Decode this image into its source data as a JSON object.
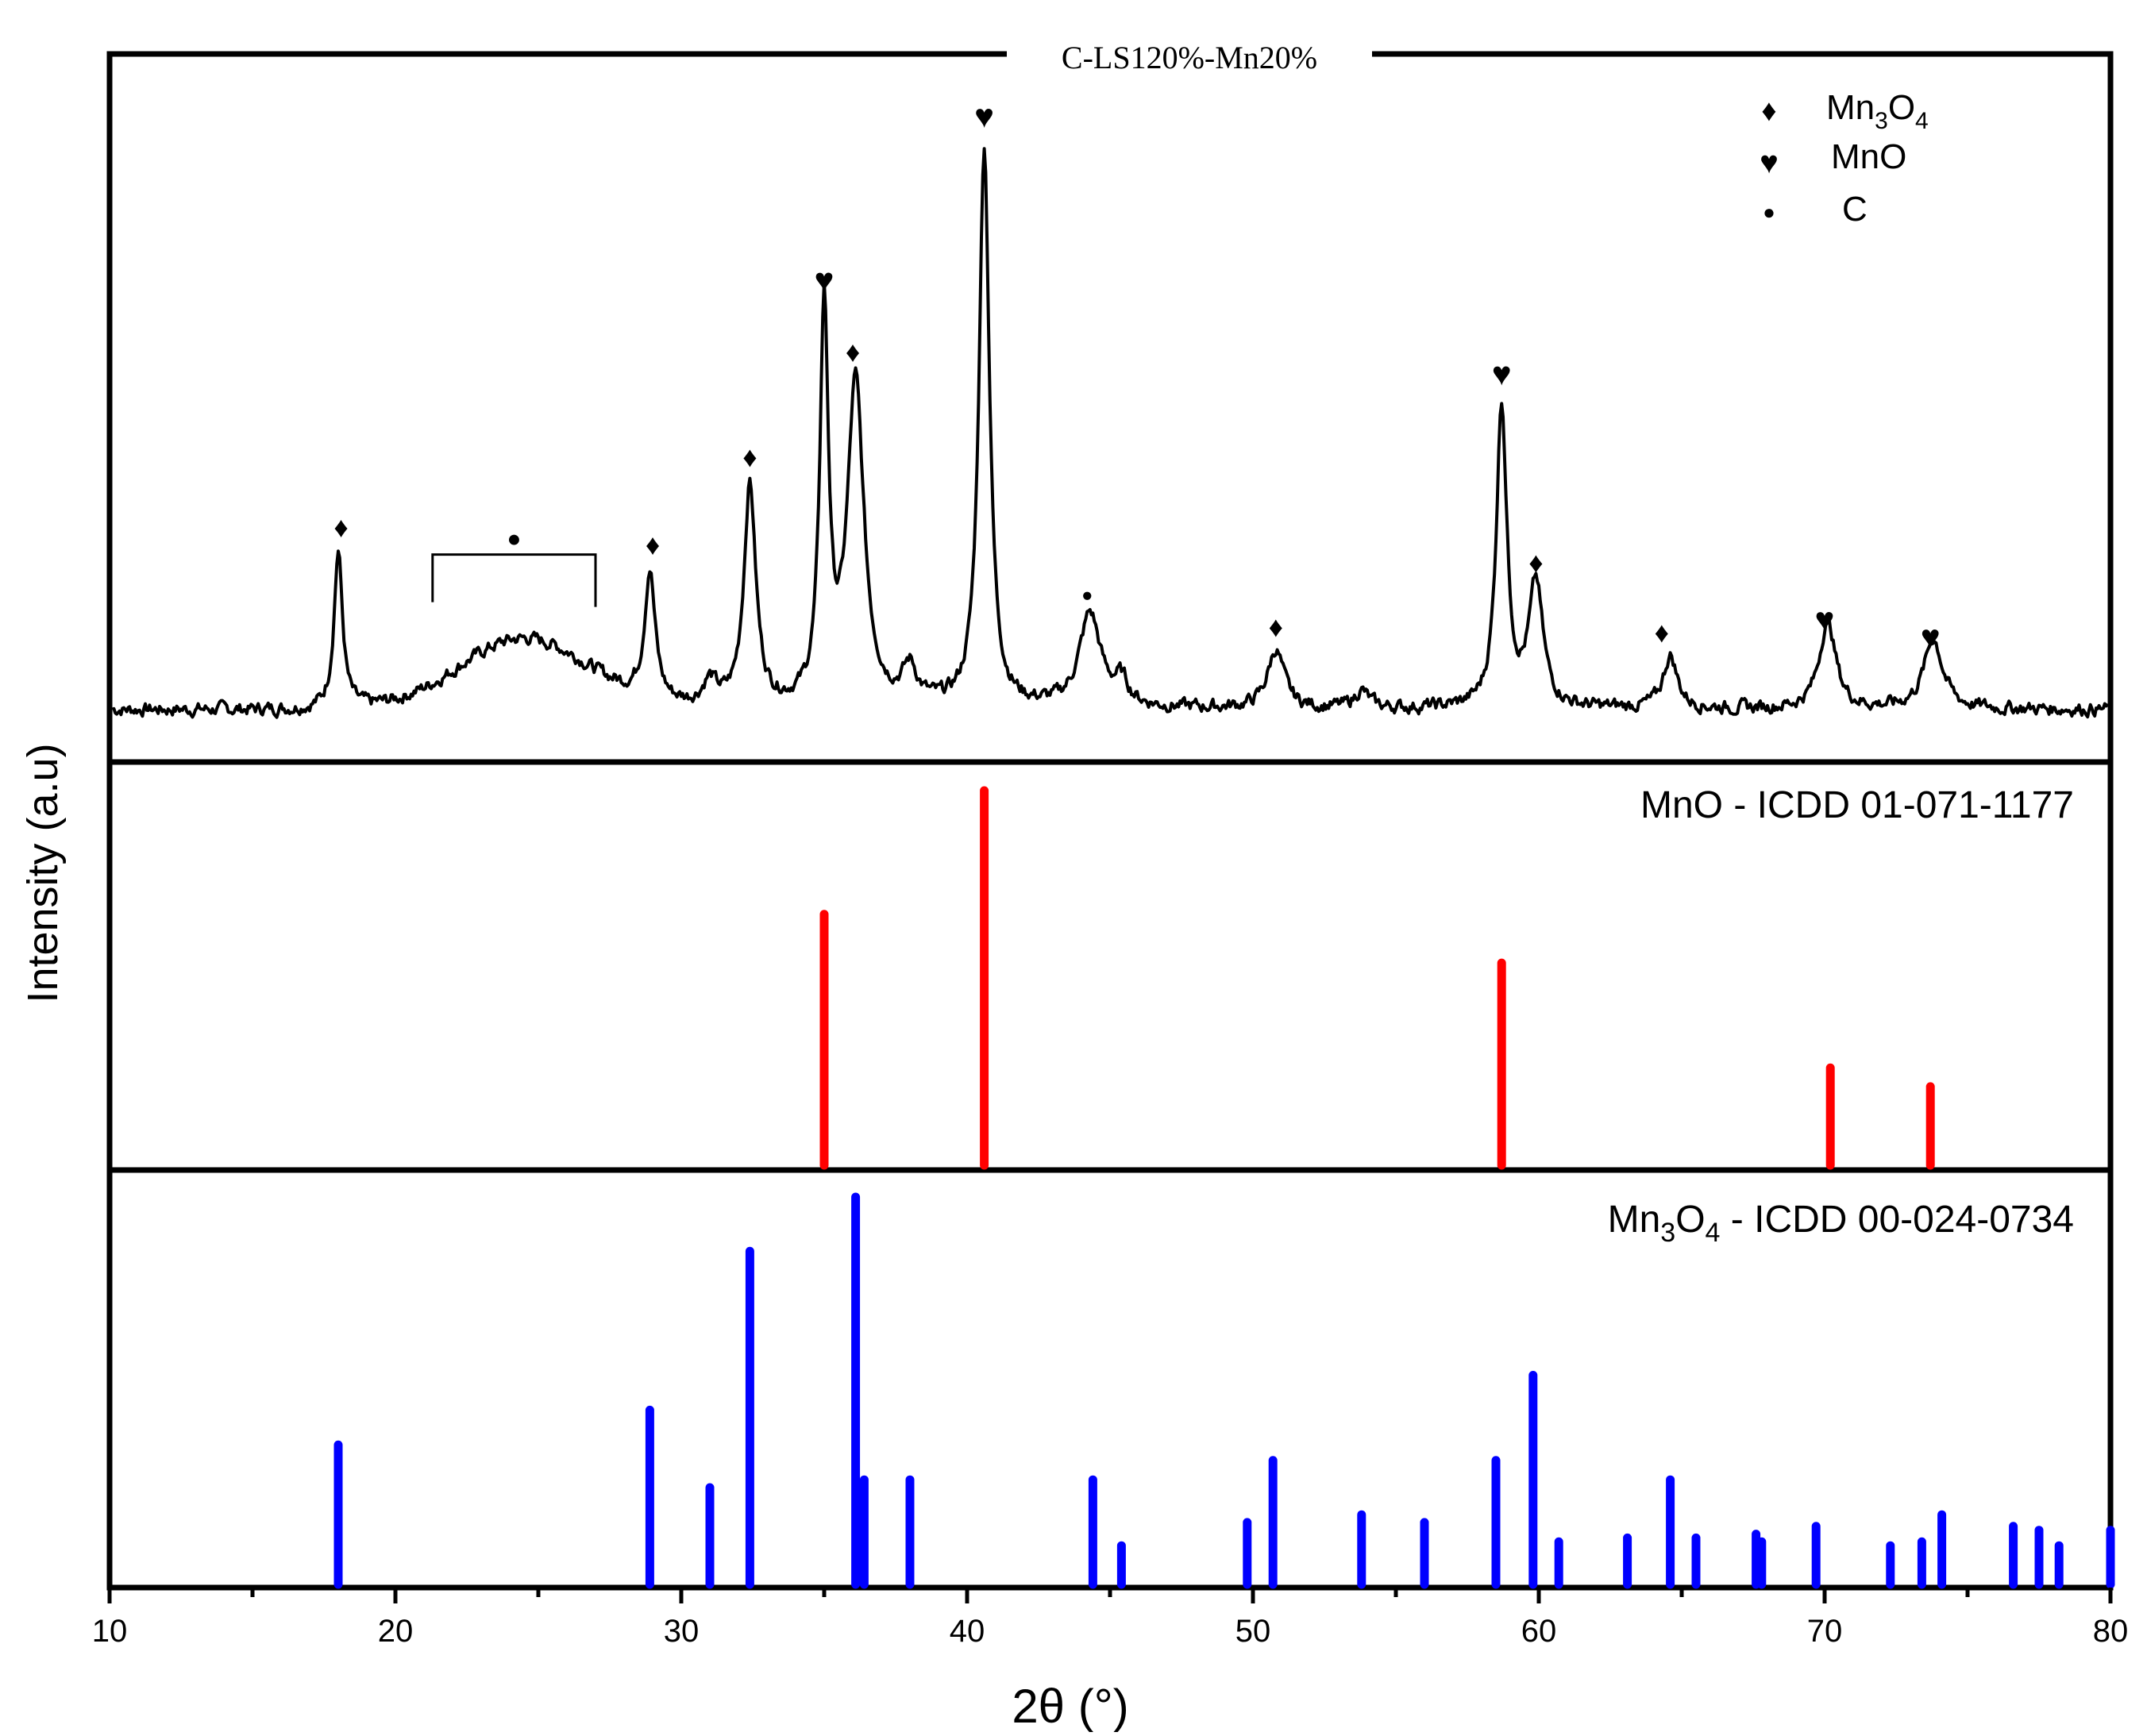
{
  "chart_data": {
    "type": "xrd-stacked",
    "xlabel": "2θ (°)",
    "ylabel": "Intensity (a.u)",
    "xlim": [
      10,
      80
    ],
    "xticks": [
      "10",
      "20",
      "30",
      "40",
      "50",
      "60",
      "70",
      "80"
    ],
    "panels": [
      {
        "name": "sample-pattern",
        "type": "line",
        "title": "C-LS120%-Mn20%",
        "color": "#000000",
        "ylim": [
          0,
          100
        ],
        "baseline_noise": 4,
        "broad_hump": {
          "center": 24.5,
          "width": 3.2,
          "height": 12
        },
        "peaks": [
          {
            "x": 18.0,
            "h": 27,
            "w": 0.18
          },
          {
            "x": 28.9,
            "h": 22,
            "w": 0.22
          },
          {
            "x": 31.0,
            "h": 4,
            "w": 0.3
          },
          {
            "x": 32.4,
            "h": 38,
            "w": 0.25
          },
          {
            "x": 35.0,
            "h": 67,
            "w": 0.18
          },
          {
            "x": 36.1,
            "h": 55,
            "w": 0.35
          },
          {
            "x": 38.0,
            "h": 6,
            "w": 0.3
          },
          {
            "x": 40.6,
            "h": 96,
            "w": 0.22
          },
          {
            "x": 44.3,
            "h": 16,
            "w": 0.45
          },
          {
            "x": 45.4,
            "h": 4,
            "w": 0.3
          },
          {
            "x": 50.8,
            "h": 10,
            "w": 0.35
          },
          {
            "x": 53.8,
            "h": 3,
            "w": 0.3
          },
          {
            "x": 58.7,
            "h": 52,
            "w": 0.22
          },
          {
            "x": 59.9,
            "h": 21,
            "w": 0.3
          },
          {
            "x": 64.6,
            "h": 9,
            "w": 0.3
          },
          {
            "x": 70.1,
            "h": 15,
            "w": 0.35
          },
          {
            "x": 73.8,
            "h": 12,
            "w": 0.4
          }
        ],
        "markers": [
          {
            "symbol": "♦",
            "phase": "Mn3O4",
            "x": 18.1,
            "y": 31
          },
          {
            "symbol": "♦",
            "phase": "Mn3O4",
            "x": 29.0,
            "y": 28
          },
          {
            "symbol": "♦",
            "phase": "Mn3O4",
            "x": 32.4,
            "y": 43
          },
          {
            "symbol": "♥",
            "phase": "MnO",
            "x": 35.0,
            "y": 73
          },
          {
            "symbol": "♦",
            "phase": "Mn3O4",
            "x": 36.0,
            "y": 61
          },
          {
            "symbol": "♥",
            "phase": "MnO",
            "x": 40.6,
            "y": 101
          },
          {
            "symbol": "●",
            "phase": "C",
            "x": 44.2,
            "y": 20
          },
          {
            "symbol": "♦",
            "phase": "Mn3O4",
            "x": 50.8,
            "y": 14
          },
          {
            "symbol": "♥",
            "phase": "MnO",
            "x": 58.7,
            "y": 57
          },
          {
            "symbol": "♦",
            "phase": "Mn3O4",
            "x": 59.9,
            "y": 25
          },
          {
            "symbol": "♦",
            "phase": "Mn3O4",
            "x": 64.3,
            "y": 13
          },
          {
            "symbol": "♥",
            "phase": "MnO",
            "x": 70.0,
            "y": 15
          },
          {
            "symbol": "♥",
            "phase": "MnO",
            "x": 73.7,
            "y": 12
          }
        ],
        "carbon_bracket": {
          "x_start": 21.3,
          "x_end": 27.0,
          "y": 28,
          "symbol": "●"
        },
        "legend": [
          {
            "symbol": "♦",
            "label": "Mn",
            "sub": "3",
            "label2": "O",
            "sub2": "4"
          },
          {
            "symbol": "♥",
            "label": "MnO"
          },
          {
            "symbol": "●",
            "label": "C"
          }
        ]
      },
      {
        "name": "mno-reference",
        "type": "stick",
        "label": "MnO - ICDD 01-071-1177",
        "color": "#ff0000",
        "ylim": [
          0,
          100
        ],
        "x": [
          35.0,
          40.6,
          58.7,
          70.2,
          73.7
        ],
        "values": [
          67,
          100,
          54,
          26,
          21
        ]
      },
      {
        "name": "mn3o4-reference",
        "type": "stick",
        "label_parts": {
          "a": "Mn",
          "sub1": "3",
          "b": "O",
          "sub2": "4",
          "rest": " - ICDD 00-024-0734"
        },
        "color": "#0000ff",
        "ylim": [
          0,
          100
        ],
        "x": [
          18.0,
          28.9,
          31.0,
          32.4,
          36.1,
          36.4,
          38.0,
          44.4,
          45.4,
          49.8,
          50.7,
          53.8,
          56.0,
          58.5,
          59.8,
          60.7,
          63.1,
          64.6,
          65.5,
          67.6,
          67.8,
          69.7,
          72.3,
          73.4,
          74.1,
          76.6,
          77.5,
          78.2,
          80.0
        ],
        "values": [
          36,
          45,
          25,
          86,
          100,
          27,
          27,
          27,
          10,
          16,
          32,
          18,
          16,
          32,
          54,
          11,
          12,
          27,
          12,
          13,
          11,
          15,
          10,
          11,
          18,
          15,
          14,
          10,
          14
        ]
      }
    ]
  }
}
